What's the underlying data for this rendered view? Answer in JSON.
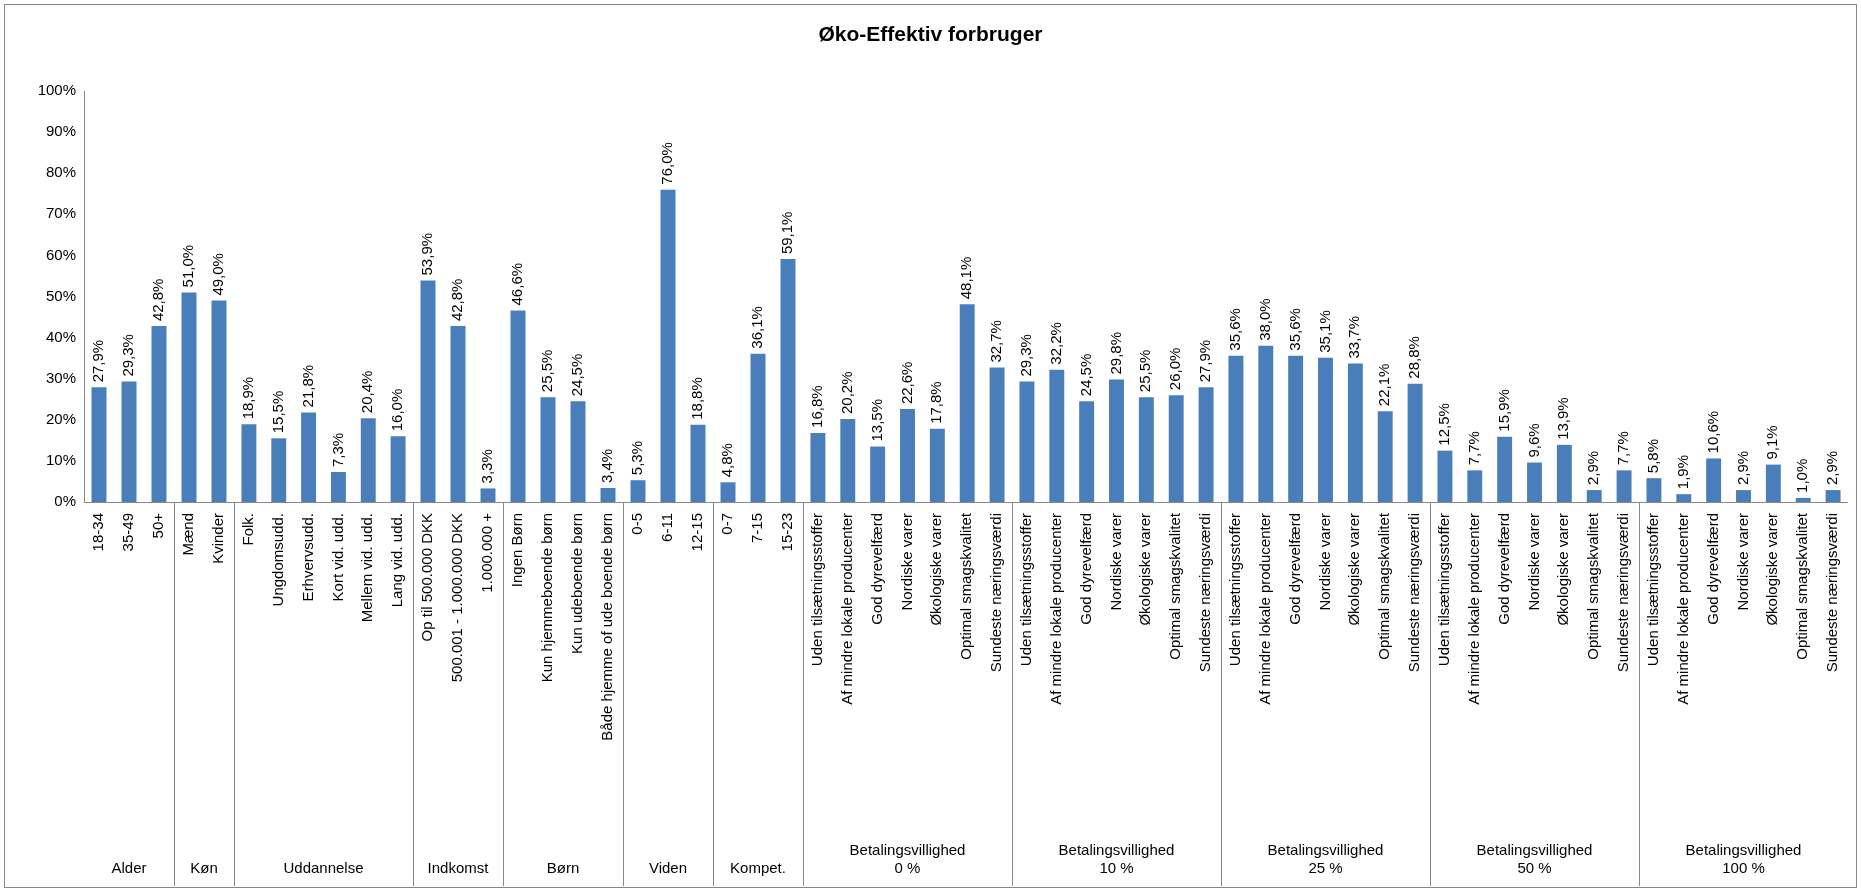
{
  "chart_data": [
    {
      "type": "bar",
      "xlabel": "Alder",
      "categories": [
        "18-34",
        "35-49",
        "50+"
      ],
      "values": [
        27.9,
        29.3,
        42.8
      ],
      "value_labels": [
        "27,9%",
        "29,3%",
        "42,8%"
      ],
      "color": "#4a7ebb",
      "ylim": [
        0,
        100
      ],
      "yticks": [
        {
          "value": 0,
          "label": "0%"
        },
        {
          "value": 10,
          "label": "10%"
        },
        {
          "value": 20,
          "label": "20%"
        },
        {
          "value": 30,
          "label": "30%"
        },
        {
          "value": 40,
          "label": "40%"
        },
        {
          "value": 50,
          "label": "50%"
        },
        {
          "value": 60,
          "label": "60%"
        },
        {
          "value": 70,
          "label": "70%"
        },
        {
          "value": 80,
          "label": "80%"
        },
        {
          "value": 90,
          "label": "90%"
        },
        {
          "value": 100,
          "label": "100%"
        }
      ]
    },
    {
      "type": "bar",
      "xlabel": "Køn",
      "categories": [
        "Mænd",
        "Kvinder"
      ],
      "values": [
        51.0,
        49.0
      ],
      "value_labels": [
        "51,0%",
        "49,0%"
      ],
      "color": "#4a7ebb",
      "ylim": [
        0,
        100
      ],
      "tick_labels": "x"
    },
    {
      "type": "bar",
      "xlabel": "Uddannelse",
      "categories": [
        "Folk.",
        "Ungdomsudd.",
        "Erhvervsudd.",
        "Kort vid. udd.",
        "Mellem vid. udd.",
        "Lang vid. udd."
      ],
      "values": [
        18.9,
        15.5,
        21.8,
        7.3,
        20.4,
        16.0
      ],
      "value_labels": [
        "18,9%",
        "15,5%",
        "21,8%",
        "7,3%",
        "20,4%",
        "16,0%"
      ],
      "color": "#4a7ebb",
      "ylim": [
        0,
        100
      ],
      "tick_labels": "x"
    },
    {
      "type": "bar",
      "xlabel": "Indkomst",
      "categories": [
        "Op til 500.000 DKK",
        "500.001 - 1.000.000 DKK",
        "1.000.000 +"
      ],
      "values": [
        53.9,
        42.8,
        3.3
      ],
      "value_labels": [
        "53,9%",
        "42,8%",
        "3,3%"
      ],
      "color": "#4a7ebb",
      "ylim": [
        0,
        100
      ],
      "tick_labels": "x"
    },
    {
      "type": "bar",
      "xlabel": "Børn",
      "categories": [
        "Ingen Børn",
        "Kun hjemmeboende børn",
        "Kun udeboende børn",
        "Både hjemme of ude boende børn"
      ],
      "values": [
        46.6,
        25.5,
        24.5,
        3.4
      ],
      "value_labels": [
        "46,6%",
        "25,5%",
        "24,5%",
        "3,4%"
      ],
      "color": "#4a7ebb",
      "ylim": [
        0,
        100
      ],
      "tick_labels": "x"
    },
    {
      "type": "bar",
      "xlabel": "Viden",
      "categories": [
        "0-5",
        "6-11",
        "12-15"
      ],
      "values": [
        5.3,
        76.0,
        18.8
      ],
      "value_labels": [
        "5,3%",
        "76,0%",
        "18,8%"
      ],
      "color": "#4a7ebb",
      "ylim": [
        0,
        100
      ],
      "tick_labels": "x"
    },
    {
      "type": "bar",
      "xlabel": "Kompet.",
      "categories": [
        "0-7",
        "7-15",
        "15-23"
      ],
      "values": [
        4.8,
        36.1,
        59.1
      ],
      "value_labels": [
        "4,8%",
        "36,1%",
        "59,1%"
      ],
      "color": "#4a7ebb",
      "ylim": [
        0,
        100
      ],
      "tick_labels": "x"
    },
    {
      "type": "bar",
      "title": "Øko-Effektiv forbruger",
      "xlabel": "Betalingsvillighed\n0 %",
      "categories": [
        "Uden tilsætningsstoffer",
        "Af mindre lokale producenter",
        "God dyrevelfærd",
        "Nordiske varer",
        "Økologiske varer",
        "Optimal smagskvalitet",
        "Sundeste næringsværdi"
      ],
      "values": [
        16.8,
        20.2,
        13.5,
        22.6,
        17.8,
        48.1,
        32.7
      ],
      "value_labels": [
        "16,8%",
        "20,2%",
        "13,5%",
        "22,6%",
        "17,8%",
        "48,1%",
        "32,7%"
      ],
      "color": "#4a7ebb",
      "ylim": [
        0,
        100
      ],
      "tick_labels": "x"
    },
    {
      "type": "bar",
      "xlabel": "Betalingsvillighed\n10 %",
      "categories": [
        "Uden tilsætningsstoffer",
        "Af mindre lokale producenter",
        "God dyrevelfærd",
        "Nordiske varer",
        "Økologiske varer",
        "Optimal smagskvalitet",
        "Sundeste næringsværdi"
      ],
      "values": [
        29.3,
        32.2,
        24.5,
        29.8,
        25.5,
        26.0,
        27.9
      ],
      "value_labels": [
        "29,3%",
        "32,2%",
        "24,5%",
        "29,8%",
        "25,5%",
        "26,0%",
        "27,9%"
      ],
      "color": "#4a7ebb",
      "ylim": [
        0,
        100
      ],
      "tick_labels": "x"
    },
    {
      "type": "bar",
      "xlabel": "Betalingsvillighed\n25 %",
      "categories": [
        "Uden tilsætningsstoffer",
        "Af mindre lokale producenter",
        "God dyrevelfærd",
        "Nordiske varer",
        "Økologiske varer",
        "Optimal smagskvalitet",
        "Sundeste næringsværdi"
      ],
      "values": [
        35.6,
        38.0,
        35.6,
        35.1,
        33.7,
        22.1,
        28.8
      ],
      "value_labels": [
        "35,6%",
        "38,0%",
        "35,6%",
        "35,1%",
        "33,7%",
        "22,1%",
        "28,8%"
      ],
      "color": "#4a7ebb",
      "ylim": [
        0,
        100
      ],
      "tick_labels": "x"
    },
    {
      "type": "bar",
      "xlabel": "Betalingsvillighed\n50 %",
      "categories": [
        "Uden tilsætningsstoffer",
        "Af mindre lokale producenter",
        "God dyrevelfærd",
        "Nordiske varer",
        "Økologiske varer",
        "Optimal smagskvalitet",
        "Sundeste næringsværdi"
      ],
      "values": [
        12.5,
        7.7,
        15.9,
        9.6,
        13.9,
        2.9,
        7.7
      ],
      "value_labels": [
        "12,5%",
        "7,7%",
        "15,9%",
        "9,6%",
        "13,9%",
        "2,9%",
        "7,7%"
      ],
      "color": "#4a7ebb",
      "ylim": [
        0,
        100
      ],
      "tick_labels": "x"
    },
    {
      "type": "bar",
      "xlabel": "Betalingsvillighed\n100 %",
      "categories": [
        "Uden tilsætningsstoffer",
        "Af mindre lokale producenter",
        "God dyrevelfærd",
        "Nordiske varer",
        "Økologiske varer",
        "Optimal smagskvalitet",
        "Sundeste næringsværdi"
      ],
      "values": [
        5.8,
        1.9,
        10.6,
        2.9,
        9.1,
        1.0,
        2.9
      ],
      "value_labels": [
        "5,8%",
        "1,9%",
        "10,6%",
        "2,9%",
        "9,1%",
        "1,0%",
        "2,9%"
      ],
      "color": "#4a7ebb",
      "ylim": [
        0,
        100
      ],
      "tick_labels": "x"
    }
  ]
}
